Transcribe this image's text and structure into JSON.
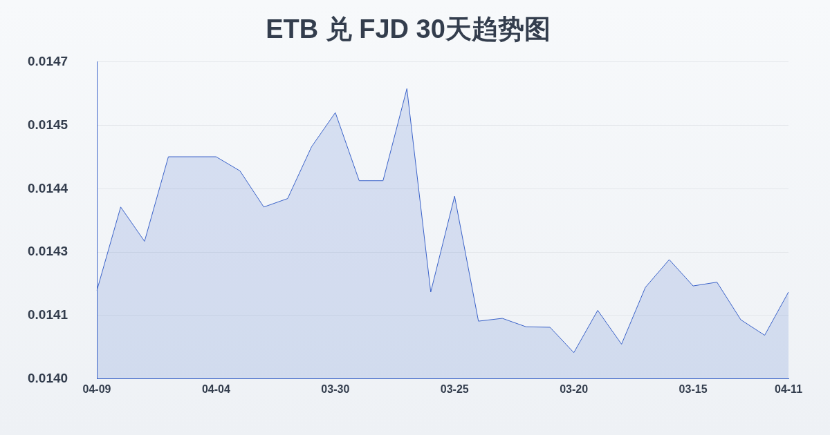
{
  "chart_data": {
    "type": "area",
    "title": "ETB 兑 FJD 30天趋势图",
    "categories": [
      "04-09",
      null,
      null,
      null,
      null,
      "04-04",
      null,
      null,
      null,
      null,
      "03-30",
      null,
      null,
      null,
      null,
      "03-25",
      null,
      null,
      null,
      null,
      "03-20",
      null,
      null,
      null,
      null,
      "03-15",
      null,
      null,
      null,
      "04-11"
    ],
    "values": [
      0.014188,
      0.014366,
      0.014293,
      0.014473,
      0.014473,
      0.014473,
      0.014443,
      0.014366,
      0.014384,
      0.014494,
      0.014567,
      0.014422,
      0.014422,
      0.014618,
      0.014185,
      0.014389,
      0.014123,
      0.014129,
      0.014111,
      0.01411,
      0.014056,
      0.014146,
      0.014074,
      0.014195,
      0.014254,
      0.014198,
      0.014206,
      0.014126,
      0.014093,
      0.014185
    ],
    "color": "#3a62c9",
    "ylim": [
      0.014,
      0.014675
    ],
    "yticks": [
      {
        "value": 0.014,
        "label": "0.0140"
      },
      {
        "value": 0.014135,
        "label": "0.0141"
      },
      {
        "value": 0.01427,
        "label": "0.0143"
      },
      {
        "value": 0.014405,
        "label": "0.0144"
      },
      {
        "value": 0.01454,
        "label": "0.0145"
      },
      {
        "value": 0.014675,
        "label": "0.0147"
      }
    ],
    "grid": "y"
  }
}
